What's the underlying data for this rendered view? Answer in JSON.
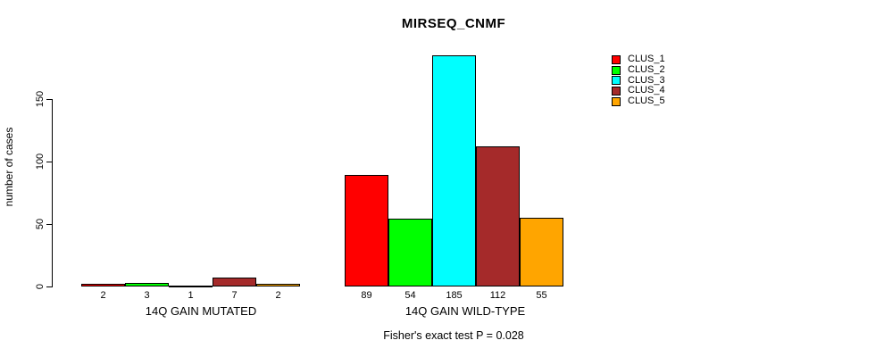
{
  "chart_data": {
    "type": "bar",
    "title": "MIRSEQ_CNMF",
    "ylabel": "number of cases",
    "xlabel": "",
    "categories": [
      "14Q GAIN MUTATED",
      "14Q GAIN WILD-TYPE"
    ],
    "series": [
      {
        "name": "CLUS_1",
        "color": "#FF0000",
        "values": [
          2,
          89
        ]
      },
      {
        "name": "CLUS_2",
        "color": "#00FF00",
        "values": [
          3,
          54
        ]
      },
      {
        "name": "CLUS_3",
        "color": "#00FFFF",
        "values": [
          1,
          185
        ]
      },
      {
        "name": "CLUS_4",
        "color": "#A52A2A",
        "values": [
          7,
          112
        ]
      },
      {
        "name": "CLUS_5",
        "color": "#FFA500",
        "values": [
          2,
          55
        ]
      }
    ],
    "yticks": [
      0,
      50,
      100,
      150
    ],
    "ylim": [
      0,
      185
    ],
    "grid": false,
    "legend_position": "right",
    "bar_border_color": "#000000",
    "annotation": "Fisher's exact test P = 0.028"
  }
}
